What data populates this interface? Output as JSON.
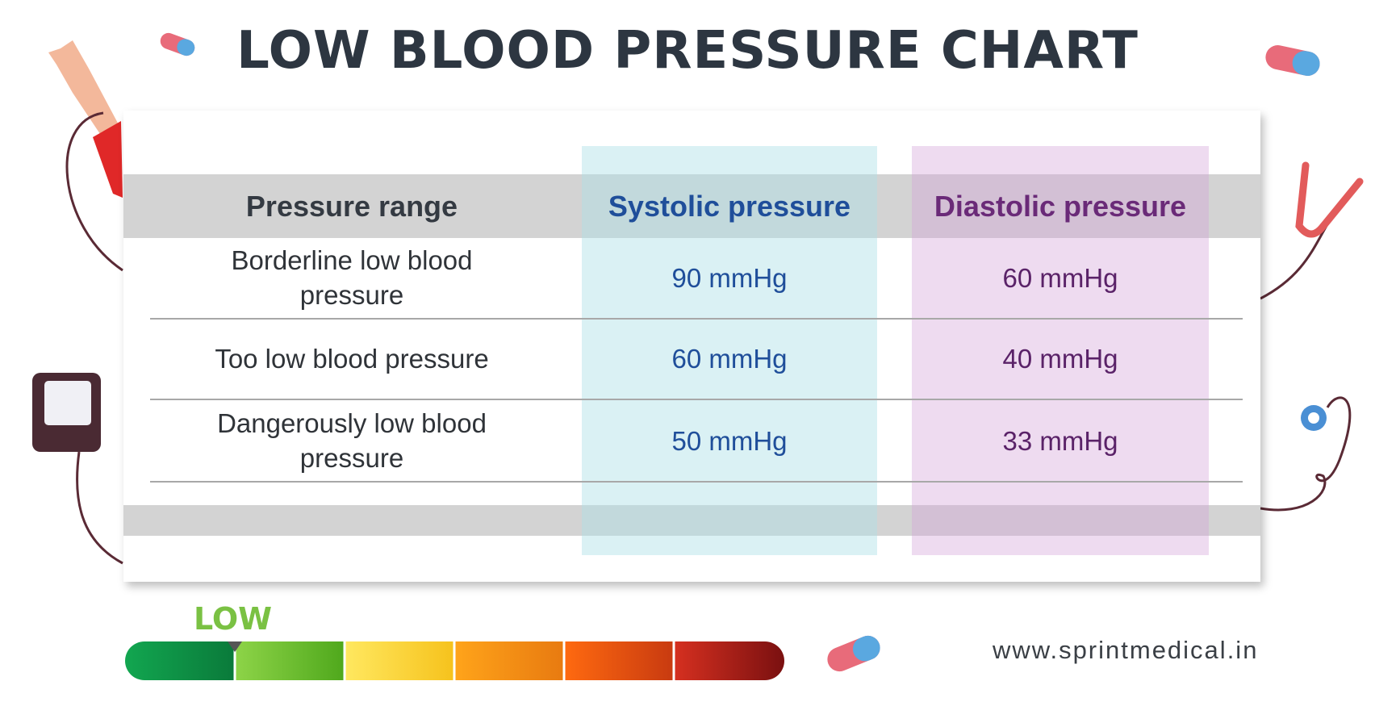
{
  "title": "LOW BLOOD PRESSURE CHART",
  "table": {
    "headers": [
      "Pressure range",
      "Systolic pressure",
      "Diastolic pressure"
    ],
    "rows": [
      [
        "Borderline low blood pressure",
        "90 mmHg",
        "60 mmHg"
      ],
      [
        "Too low blood pressure",
        "60 mmHg",
        "40 mmHg"
      ],
      [
        "Dangerously low blood pressure",
        "50 mmHg",
        "33 mmHg"
      ]
    ]
  },
  "scale": {
    "label": "LOW"
  },
  "footer": {
    "url": "www.sprintmedical.in"
  }
}
